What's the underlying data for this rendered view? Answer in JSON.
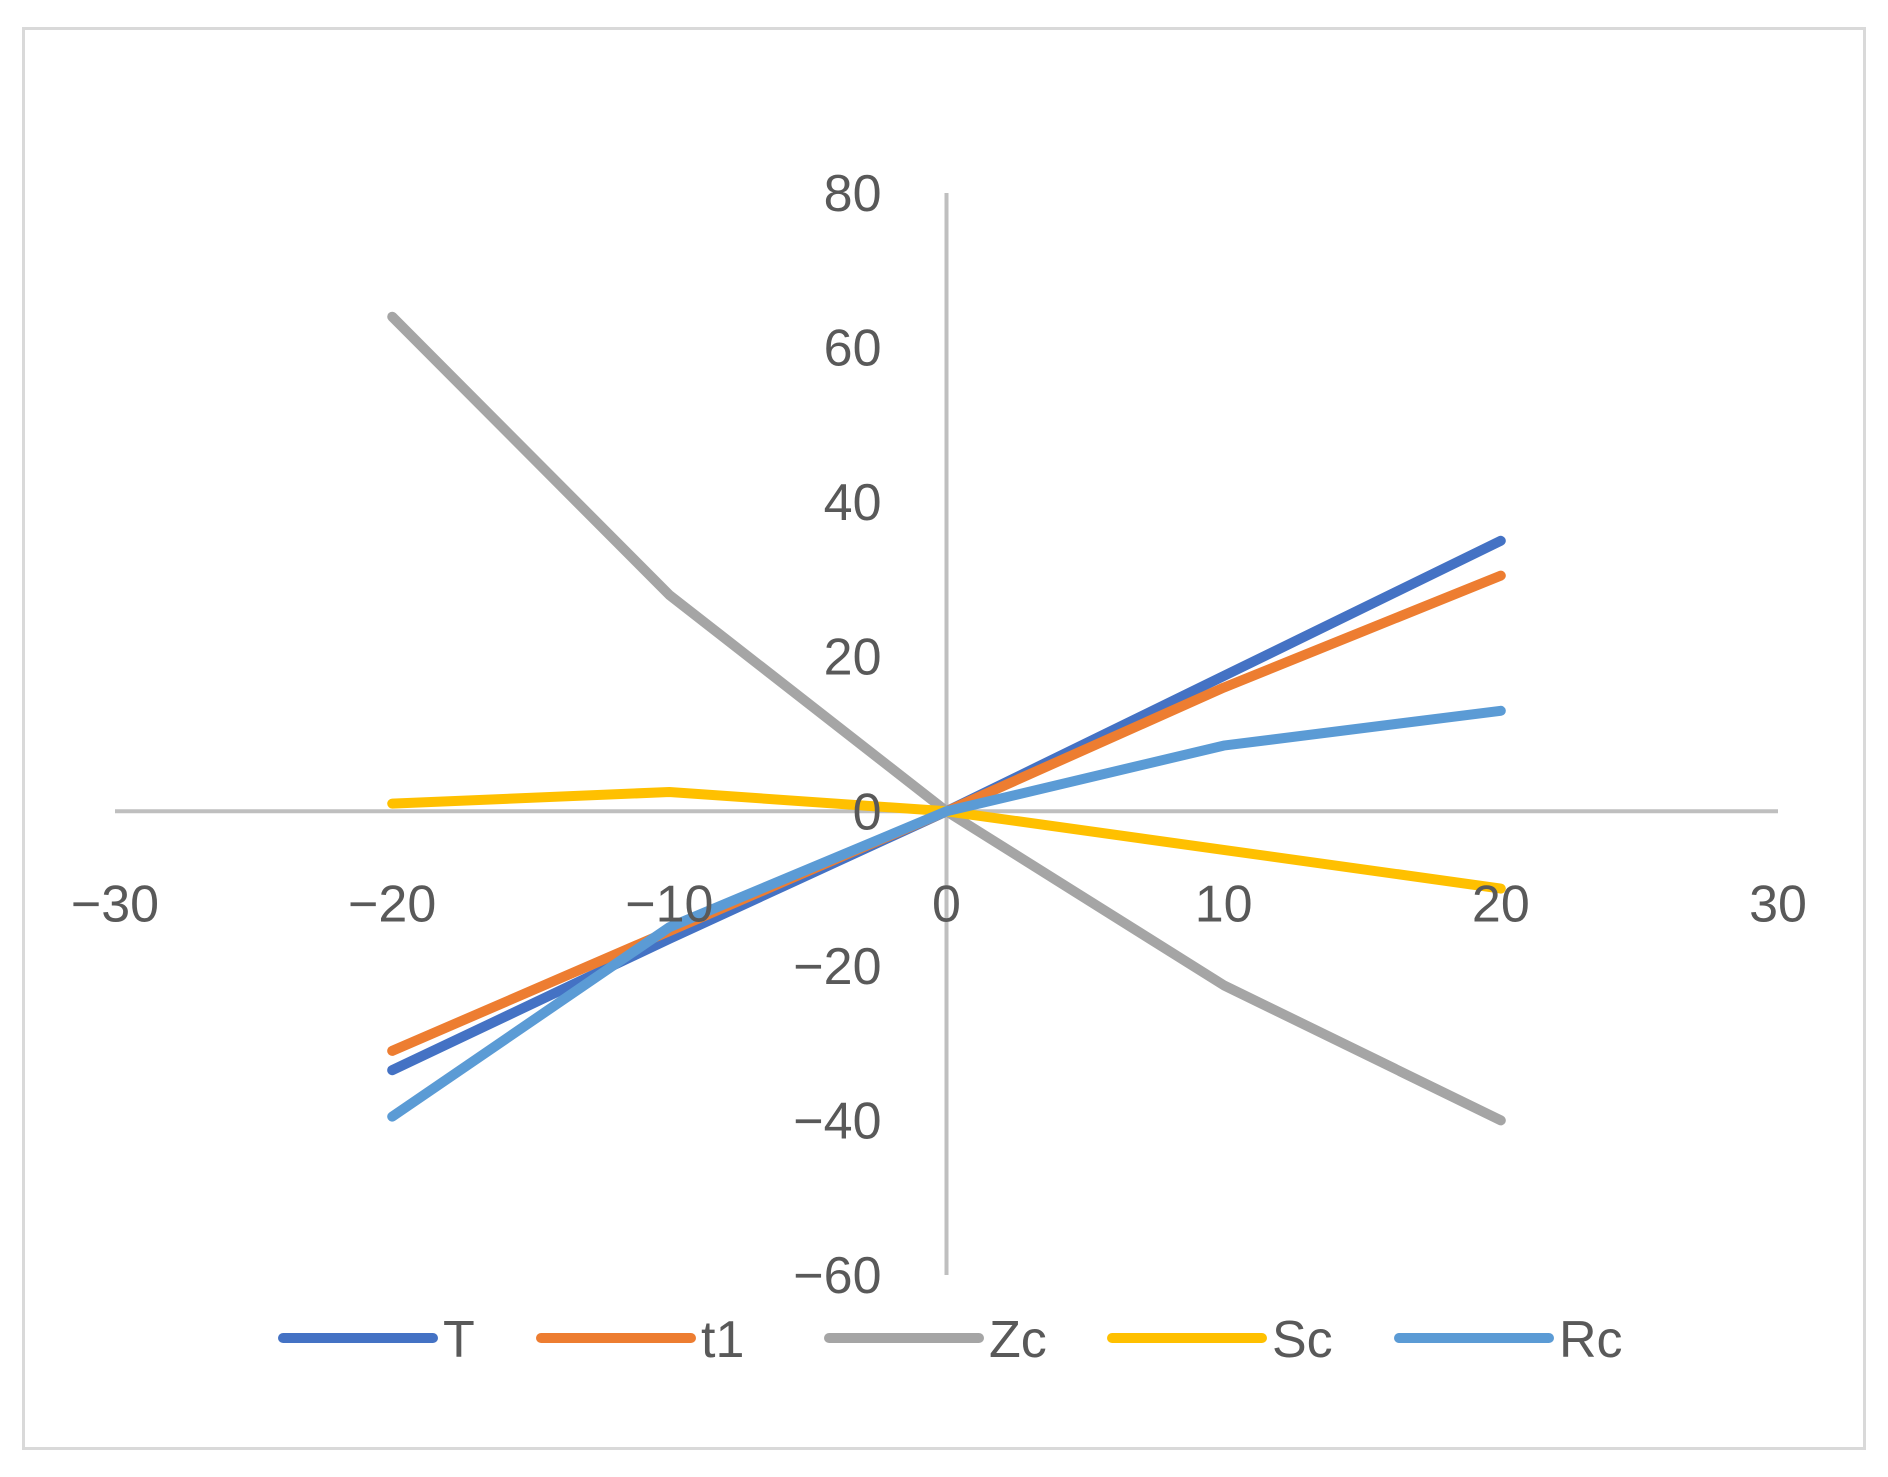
{
  "chart_data": {
    "type": "line",
    "title": "",
    "xlabel": "",
    "ylabel": "",
    "xlim": [
      -30,
      30
    ],
    "ylim": [
      -60,
      80
    ],
    "x_ticks": [
      -30,
      -20,
      -10,
      0,
      10,
      20,
      30
    ],
    "y_ticks": [
      -60,
      -40,
      -20,
      0,
      20,
      40,
      60,
      80
    ],
    "x_tick_labels": [
      "−30",
      "−20",
      "−10",
      "0",
      "10",
      "20",
      "30"
    ],
    "y_tick_labels": [
      "−60",
      "−40",
      "−20",
      "0",
      "20",
      "40",
      "60",
      "80"
    ],
    "grid": false,
    "legend_position": "bottom",
    "x": [
      -20,
      -10,
      0,
      10,
      20
    ],
    "series": [
      {
        "name": "T",
        "color": "#4472c4",
        "values": [
          -33.5,
          -16.5,
          0,
          17.5,
          35
        ]
      },
      {
        "name": "t1",
        "color": "#ed7d31",
        "values": [
          -31,
          -15.5,
          0,
          16,
          30.5
        ]
      },
      {
        "name": "Zc",
        "color": "#a5a5a5",
        "values": [
          64,
          28,
          0,
          -22.5,
          -40
        ]
      },
      {
        "name": "Sc",
        "color": "#ffc000",
        "values": [
          1,
          2.5,
          0,
          -5,
          -10
        ]
      },
      {
        "name": "Rc",
        "color": "#5b9bd5",
        "values": [
          -39.5,
          -15,
          0,
          8.5,
          13
        ]
      }
    ]
  }
}
